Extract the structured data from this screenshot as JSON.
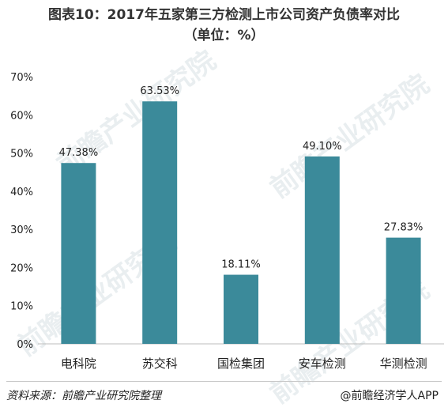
{
  "title_line1": "图表10：2017年五家第三方检测上市公司资产负债率对比",
  "title_line2": "（单位：%）",
  "chart_data": {
    "type": "bar",
    "categories": [
      "电科院",
      "苏交科",
      "国检集团",
      "安车检测",
      "华测检测"
    ],
    "values": [
      47.38,
      63.53,
      18.11,
      49.1,
      27.83
    ],
    "value_labels": [
      "47.38%",
      "63.53%",
      "18.11%",
      "49.10%",
      "27.83%"
    ],
    "ylim": [
      0,
      70
    ],
    "yticks": [
      0,
      10,
      20,
      30,
      40,
      50,
      60,
      70
    ],
    "ytick_labels": [
      "0%",
      "10%",
      "20%",
      "30%",
      "40%",
      "50%",
      "60%",
      "70%"
    ],
    "bar_color": "#3b8a9a",
    "grid": false
  },
  "watermark_text": "前瞻产业研究院",
  "source_text": "资料来源：前瞻产业研究院整理",
  "brand_text": "@前瞻经济学人APP"
}
